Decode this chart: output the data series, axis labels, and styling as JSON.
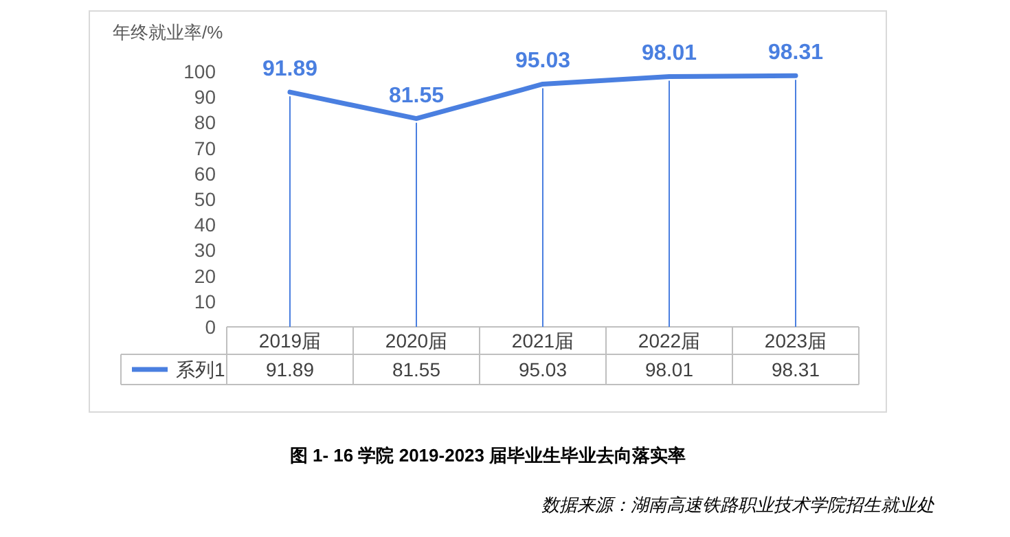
{
  "chart_data": {
    "type": "line",
    "title": "图 1- 16  学院 2019-2023 届毕业生毕业去向落实率",
    "ylabel": "年终就业率/%",
    "annotations": [
      "数据来源：湖南高速铁路职业技术学院招生就业处",
      "91.89",
      "81.55",
      "95.03",
      "98.01",
      "98.31"
    ],
    "categories": [
      "2019届",
      "2020届",
      "2021届",
      "2022届",
      "2023届"
    ],
    "series": [
      {
        "name": "系列1",
        "color": "#4a7fe0",
        "values": [
          91.89,
          81.55,
          95.03,
          98.01,
          98.31
        ],
        "value_labels": [
          "91.89",
          "81.55",
          "95.03",
          "98.01",
          "98.31"
        ]
      }
    ],
    "ylim": [
      0,
      100
    ],
    "yticks": [
      0,
      10,
      20,
      30,
      40,
      50,
      60,
      70,
      80,
      90,
      100
    ],
    "grid": "x",
    "legend": "bottom",
    "line_style": "solid"
  }
}
